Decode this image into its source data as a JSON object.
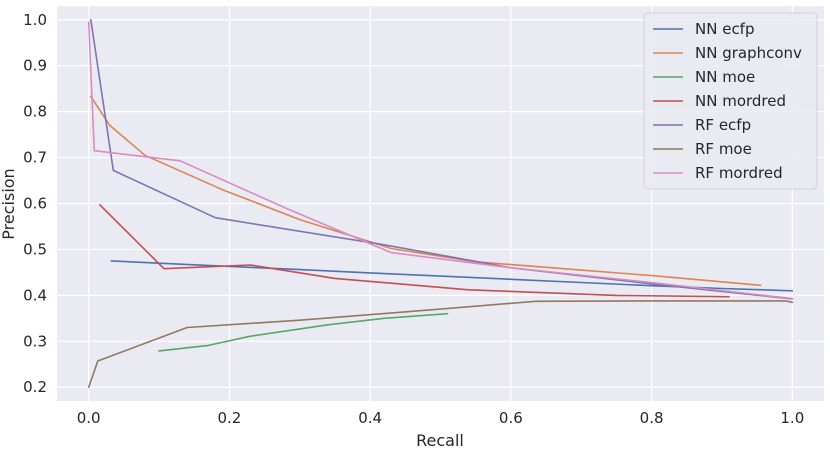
{
  "chart_data": {
    "type": "line",
    "xlabel": "Recall",
    "ylabel": "Precision",
    "xlim": [
      -0.045,
      1.045
    ],
    "ylim": [
      0.17,
      1.03
    ],
    "xticks": [
      0.0,
      0.2,
      0.4,
      0.6,
      0.8,
      1.0
    ],
    "xtick_labels": [
      "0.0",
      "0.2",
      "0.4",
      "0.6",
      "0.8",
      "1.0"
    ],
    "yticks": [
      0.2,
      0.3,
      0.4,
      0.5,
      0.6,
      0.7,
      0.8,
      0.9,
      1.0
    ],
    "ytick_labels": [
      "0.2",
      "0.3",
      "0.4",
      "0.5",
      "0.6",
      "0.7",
      "0.8",
      "0.9",
      "1.0"
    ],
    "grid": true,
    "legend_position": "top-right",
    "series": [
      {
        "name": "NN ecfp",
        "color": "#4c72b0",
        "points": [
          [
            0.032,
            0.475
          ],
          [
            0.1,
            0.47
          ],
          [
            0.2,
            0.463
          ],
          [
            0.3,
            0.456
          ],
          [
            0.4,
            0.449
          ],
          [
            0.5,
            0.442
          ],
          [
            0.6,
            0.435
          ],
          [
            0.7,
            0.428
          ],
          [
            0.8,
            0.421
          ],
          [
            0.9,
            0.415
          ],
          [
            1.0,
            0.41
          ]
        ]
      },
      {
        "name": "NN graphconv",
        "color": "#dd8452",
        "points": [
          [
            0.003,
            0.833
          ],
          [
            0.03,
            0.77
          ],
          [
            0.08,
            0.705
          ],
          [
            0.19,
            0.63
          ],
          [
            0.3,
            0.565
          ],
          [
            0.43,
            0.502
          ],
          [
            0.55,
            0.473
          ],
          [
            0.7,
            0.455
          ],
          [
            0.8,
            0.443
          ],
          [
            0.955,
            0.422
          ]
        ]
      },
      {
        "name": "NN moe",
        "color": "#55a868",
        "points": [
          [
            0.1,
            0.279
          ],
          [
            0.17,
            0.291
          ],
          [
            0.23,
            0.311
          ],
          [
            0.34,
            0.336
          ],
          [
            0.42,
            0.35
          ],
          [
            0.51,
            0.36
          ]
        ]
      },
      {
        "name": "NN mordred",
        "color": "#c44e52",
        "points": [
          [
            0.016,
            0.597
          ],
          [
            0.107,
            0.458
          ],
          [
            0.23,
            0.466
          ],
          [
            0.35,
            0.437
          ],
          [
            0.54,
            0.412
          ],
          [
            0.75,
            0.4
          ],
          [
            0.91,
            0.397
          ]
        ]
      },
      {
        "name": "RF ecfp",
        "color": "#8172b3",
        "points": [
          [
            0.003,
            1.0
          ],
          [
            0.035,
            0.672
          ],
          [
            0.18,
            0.569
          ],
          [
            0.42,
            0.51
          ],
          [
            0.6,
            0.46
          ],
          [
            0.8,
            0.425
          ],
          [
            1.0,
            0.392
          ]
        ]
      },
      {
        "name": "RF moe",
        "color": "#937860",
        "points": [
          [
            0.0,
            0.2
          ],
          [
            0.013,
            0.257
          ],
          [
            0.14,
            0.33
          ],
          [
            0.3,
            0.346
          ],
          [
            0.5,
            0.37
          ],
          [
            0.635,
            0.387
          ],
          [
            0.8,
            0.388
          ],
          [
            0.99,
            0.388
          ],
          [
            1.0,
            0.385
          ]
        ]
      },
      {
        "name": "RF mordred",
        "color": "#da8bc3",
        "points": [
          [
            0.0,
            0.995
          ],
          [
            0.008,
            0.715
          ],
          [
            0.13,
            0.693
          ],
          [
            0.28,
            0.59
          ],
          [
            0.43,
            0.493
          ],
          [
            0.6,
            0.46
          ],
          [
            0.8,
            0.428
          ],
          [
            1.0,
            0.393
          ]
        ]
      }
    ]
  }
}
